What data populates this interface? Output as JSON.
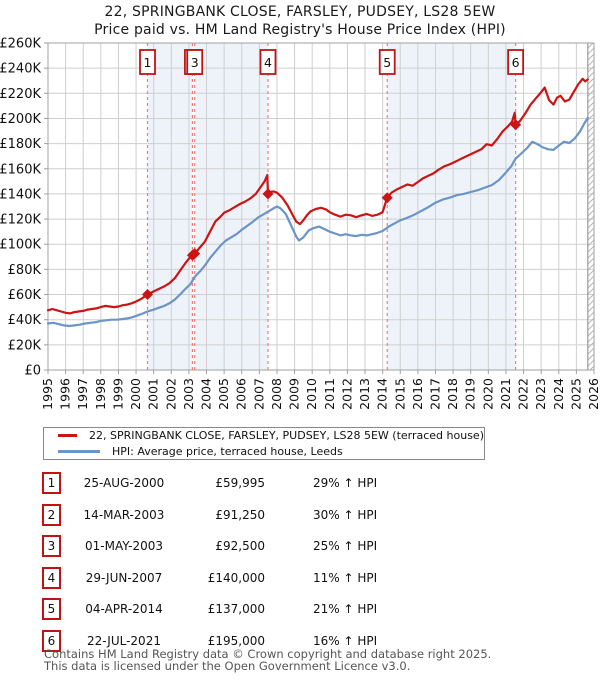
{
  "title": "22, SPRINGBANK CLOSE, FARSLEY, PUDSEY, LS28 5EW",
  "subtitle": "Price paid vs. HM Land Registry's House Price Index (HPI)",
  "legend": {
    "series1": "22, SPRINGBANK CLOSE, FARSLEY, PUDSEY, LS28 5EW (terraced house)",
    "series2": "HPI: Average price, terraced house, Leeds"
  },
  "sales": [
    {
      "num": "1",
      "date": "25-AUG-2000",
      "price": "£59,995",
      "hpi_delta": "29% ↑ HPI",
      "year": 2000.65,
      "value": 59995
    },
    {
      "num": "2",
      "date": "14-MAR-2003",
      "price": "£91,250",
      "hpi_delta": "30% ↑ HPI",
      "year": 2003.2,
      "value": 91250
    },
    {
      "num": "3",
      "date": "01-MAY-2003",
      "price": "£92,500",
      "hpi_delta": "25% ↑ HPI",
      "year": 2003.33,
      "value": 92500
    },
    {
      "num": "4",
      "date": "29-JUN-2007",
      "price": "£140,000",
      "hpi_delta": "11% ↑ HPI",
      "year": 2007.49,
      "value": 140000
    },
    {
      "num": "5",
      "date": "04-APR-2014",
      "price": "£137,000",
      "hpi_delta": "21% ↑ HPI",
      "year": 2014.26,
      "value": 137000
    },
    {
      "num": "6",
      "date": "22-JUL-2021",
      "price": "£195,000",
      "hpi_delta": "16% ↑ HPI",
      "year": 2021.55,
      "value": 195000
    }
  ],
  "footer": {
    "line1": "Contains HM Land Registry data © Crown copyright and database right 2025.",
    "line2": "This data is licensed under the Open Government Licence v3.0."
  },
  "chart_data": {
    "type": "line",
    "title": "22, SPRINGBANK CLOSE, FARSLEY, PUDSEY, LS28 5EW",
    "subtitle": "Price paid vs. HM Land Registry's House Price Index (HPI)",
    "xlabel": "",
    "ylabel": "",
    "x_range": [
      1995,
      2026
    ],
    "y_range": [
      0,
      260000
    ],
    "y_tick_step": 20000,
    "y_tick_labels": [
      "£0",
      "£20K",
      "£40K",
      "£60K",
      "£80K",
      "£100K",
      "£120K",
      "£140K",
      "£160K",
      "£180K",
      "£200K",
      "£220K",
      "£240K",
      "£260K"
    ],
    "x_tick_labels": [
      "1995",
      "1996",
      "1997",
      "1998",
      "1999",
      "2000",
      "2001",
      "2002",
      "2003",
      "2004",
      "2005",
      "2006",
      "2007",
      "2008",
      "2009",
      "2010",
      "2011",
      "2012",
      "2013",
      "2014",
      "2015",
      "2016",
      "2017",
      "2018",
      "2019",
      "2020",
      "2021",
      "2022",
      "2023",
      "2024",
      "2025",
      "2026"
    ],
    "grid": true,
    "legend_position": "bottom",
    "shaded_ownership_spans": [
      [
        2000.65,
        2003.2
      ],
      [
        2003.33,
        2007.49
      ],
      [
        2014.26,
        2021.55
      ]
    ],
    "hatch_future_span": [
      2025.65,
      2026
    ],
    "colors": {
      "property": "#cc1414",
      "hpi": "#6b94c8",
      "sale_marker_line": "#ef7f7f",
      "ownership_shade": "#eef3fa",
      "grid": "#cfcfcf",
      "border": "#a0a0a0",
      "hatch": "#b8b8b8",
      "numbox_border": "#c01414"
    },
    "series": [
      {
        "name": "22, SPRINGBANK CLOSE, FARSLEY, PUDSEY, LS28 5EW (terraced house)",
        "color_key": "property",
        "points": [
          [
            1995.0,
            47500
          ],
          [
            1995.25,
            48500
          ],
          [
            1995.5,
            47500
          ],
          [
            1995.75,
            46500
          ],
          [
            1996.0,
            45500
          ],
          [
            1996.25,
            45000
          ],
          [
            1996.5,
            46000
          ],
          [
            1996.75,
            46500
          ],
          [
            1997.0,
            47000
          ],
          [
            1997.25,
            48000
          ],
          [
            1997.5,
            48500
          ],
          [
            1997.75,
            49000
          ],
          [
            1998.0,
            50000
          ],
          [
            1998.25,
            51000
          ],
          [
            1998.5,
            50500
          ],
          [
            1998.75,
            50000
          ],
          [
            1999.0,
            50500
          ],
          [
            1999.25,
            51500
          ],
          [
            1999.5,
            52000
          ],
          [
            1999.75,
            53000
          ],
          [
            2000.0,
            54500
          ],
          [
            2000.3,
            56500
          ],
          [
            2000.65,
            59995
          ],
          [
            2001.0,
            62500
          ],
          [
            2001.3,
            64500
          ],
          [
            2001.6,
            66500
          ],
          [
            2001.9,
            69000
          ],
          [
            2002.2,
            73000
          ],
          [
            2002.5,
            79000
          ],
          [
            2002.8,
            85000
          ],
          [
            2003.0,
            88500
          ],
          [
            2003.2,
            91250
          ],
          [
            2003.33,
            92500
          ],
          [
            2003.6,
            97000
          ],
          [
            2003.9,
            102000
          ],
          [
            2004.2,
            110000
          ],
          [
            2004.5,
            118000
          ],
          [
            2004.8,
            122000
          ],
          [
            2005.0,
            125000
          ],
          [
            2005.3,
            127000
          ],
          [
            2005.6,
            129500
          ],
          [
            2005.9,
            132000
          ],
          [
            2006.2,
            134000
          ],
          [
            2006.5,
            136500
          ],
          [
            2006.8,
            140000
          ],
          [
            2007.1,
            146000
          ],
          [
            2007.3,
            150000
          ],
          [
            2007.45,
            155000
          ],
          [
            2007.49,
            140000
          ],
          [
            2007.6,
            141500
          ],
          [
            2007.8,
            142000
          ],
          [
            2008.0,
            141000
          ],
          [
            2008.3,
            137000
          ],
          [
            2008.6,
            131000
          ],
          [
            2008.9,
            123000
          ],
          [
            2009.1,
            118000
          ],
          [
            2009.3,
            116000
          ],
          [
            2009.5,
            119000
          ],
          [
            2009.7,
            123000
          ],
          [
            2009.9,
            126000
          ],
          [
            2010.2,
            128000
          ],
          [
            2010.5,
            129000
          ],
          [
            2010.8,
            127500
          ],
          [
            2011.0,
            125500
          ],
          [
            2011.3,
            123500
          ],
          [
            2011.6,
            122000
          ],
          [
            2011.9,
            123500
          ],
          [
            2012.2,
            123000
          ],
          [
            2012.5,
            121500
          ],
          [
            2012.8,
            123000
          ],
          [
            2013.1,
            124000
          ],
          [
            2013.4,
            122500
          ],
          [
            2013.7,
            123500
          ],
          [
            2014.0,
            125500
          ],
          [
            2014.26,
            137000
          ],
          [
            2014.5,
            141000
          ],
          [
            2014.8,
            143500
          ],
          [
            2015.1,
            145500
          ],
          [
            2015.4,
            147500
          ],
          [
            2015.7,
            146500
          ],
          [
            2016.0,
            149500
          ],
          [
            2016.3,
            152500
          ],
          [
            2016.6,
            154500
          ],
          [
            2016.9,
            156500
          ],
          [
            2017.2,
            159500
          ],
          [
            2017.5,
            162000
          ],
          [
            2017.8,
            163500
          ],
          [
            2018.1,
            165500
          ],
          [
            2018.4,
            167500
          ],
          [
            2018.7,
            169500
          ],
          [
            2019.0,
            171500
          ],
          [
            2019.3,
            173500
          ],
          [
            2019.6,
            175500
          ],
          [
            2019.9,
            179500
          ],
          [
            2020.2,
            178500
          ],
          [
            2020.5,
            183500
          ],
          [
            2020.8,
            189500
          ],
          [
            2021.1,
            193500
          ],
          [
            2021.35,
            197500
          ],
          [
            2021.5,
            204500
          ],
          [
            2021.55,
            195000
          ],
          [
            2021.8,
            198000
          ],
          [
            2022.1,
            204000
          ],
          [
            2022.4,
            211000
          ],
          [
            2022.7,
            216000
          ],
          [
            2023.0,
            221000
          ],
          [
            2023.2,
            224500
          ],
          [
            2023.45,
            214500
          ],
          [
            2023.7,
            211000
          ],
          [
            2023.9,
            216500
          ],
          [
            2024.1,
            218000
          ],
          [
            2024.35,
            213500
          ],
          [
            2024.6,
            215000
          ],
          [
            2024.85,
            221000
          ],
          [
            2025.1,
            227000
          ],
          [
            2025.35,
            231500
          ],
          [
            2025.5,
            229500
          ],
          [
            2025.65,
            231000
          ]
        ]
      },
      {
        "name": "HPI: Average price, terraced house, Leeds",
        "color_key": "hpi",
        "points": [
          [
            1995.0,
            37000
          ],
          [
            1995.3,
            37500
          ],
          [
            1995.6,
            36500
          ],
          [
            1995.9,
            35500
          ],
          [
            1996.2,
            35000
          ],
          [
            1996.5,
            35500
          ],
          [
            1996.8,
            36000
          ],
          [
            1997.1,
            37000
          ],
          [
            1997.4,
            37500
          ],
          [
            1997.7,
            38000
          ],
          [
            1998.0,
            39000
          ],
          [
            1998.3,
            39500
          ],
          [
            1998.6,
            40000
          ],
          [
            1998.9,
            40000
          ],
          [
            1999.2,
            40500
          ],
          [
            1999.5,
            41000
          ],
          [
            1999.8,
            42000
          ],
          [
            2000.1,
            43500
          ],
          [
            2000.4,
            45000
          ],
          [
            2000.65,
            46500
          ],
          [
            2001.0,
            48000
          ],
          [
            2001.3,
            49500
          ],
          [
            2001.6,
            51000
          ],
          [
            2001.9,
            53000
          ],
          [
            2002.2,
            56000
          ],
          [
            2002.5,
            60000
          ],
          [
            2002.8,
            64500
          ],
          [
            2003.1,
            68500
          ],
          [
            2003.33,
            74000
          ],
          [
            2003.6,
            78000
          ],
          [
            2003.9,
            83000
          ],
          [
            2004.2,
            89000
          ],
          [
            2004.5,
            94000
          ],
          [
            2004.8,
            99000
          ],
          [
            2005.1,
            103000
          ],
          [
            2005.4,
            105500
          ],
          [
            2005.7,
            108000
          ],
          [
            2006.0,
            111500
          ],
          [
            2006.3,
            114500
          ],
          [
            2006.6,
            117500
          ],
          [
            2006.9,
            121000
          ],
          [
            2007.2,
            123500
          ],
          [
            2007.5,
            126000
          ],
          [
            2007.8,
            128500
          ],
          [
            2008.0,
            130000
          ],
          [
            2008.2,
            128500
          ],
          [
            2008.5,
            124000
          ],
          [
            2008.8,
            115000
          ],
          [
            2009.1,
            106000
          ],
          [
            2009.25,
            103000
          ],
          [
            2009.5,
            105500
          ],
          [
            2009.8,
            111000
          ],
          [
            2010.1,
            113000
          ],
          [
            2010.4,
            114000
          ],
          [
            2010.7,
            112000
          ],
          [
            2011.0,
            110000
          ],
          [
            2011.3,
            108500
          ],
          [
            2011.6,
            107000
          ],
          [
            2011.9,
            108000
          ],
          [
            2012.2,
            107000
          ],
          [
            2012.5,
            106500
          ],
          [
            2012.8,
            107500
          ],
          [
            2013.1,
            107000
          ],
          [
            2013.4,
            108000
          ],
          [
            2013.7,
            109000
          ],
          [
            2014.0,
            110500
          ],
          [
            2014.26,
            113200
          ],
          [
            2014.6,
            116000
          ],
          [
            2015.0,
            119000
          ],
          [
            2015.4,
            121000
          ],
          [
            2015.8,
            123500
          ],
          [
            2016.2,
            126500
          ],
          [
            2016.6,
            129500
          ],
          [
            2017.0,
            133000
          ],
          [
            2017.4,
            135500
          ],
          [
            2017.8,
            137000
          ],
          [
            2018.2,
            139000
          ],
          [
            2018.6,
            140000
          ],
          [
            2019.0,
            141500
          ],
          [
            2019.4,
            143000
          ],
          [
            2019.8,
            145000
          ],
          [
            2020.2,
            147000
          ],
          [
            2020.6,
            151000
          ],
          [
            2021.0,
            157000
          ],
          [
            2021.3,
            162000
          ],
          [
            2021.55,
            168000
          ],
          [
            2021.9,
            172500
          ],
          [
            2022.2,
            176500
          ],
          [
            2022.5,
            181500
          ],
          [
            2022.8,
            179500
          ],
          [
            2023.1,
            177000
          ],
          [
            2023.4,
            175500
          ],
          [
            2023.7,
            175000
          ],
          [
            2024.0,
            178500
          ],
          [
            2024.3,
            181500
          ],
          [
            2024.6,
            180500
          ],
          [
            2024.9,
            184000
          ],
          [
            2025.2,
            189500
          ],
          [
            2025.45,
            196000
          ],
          [
            2025.65,
            200500
          ]
        ]
      }
    ]
  }
}
